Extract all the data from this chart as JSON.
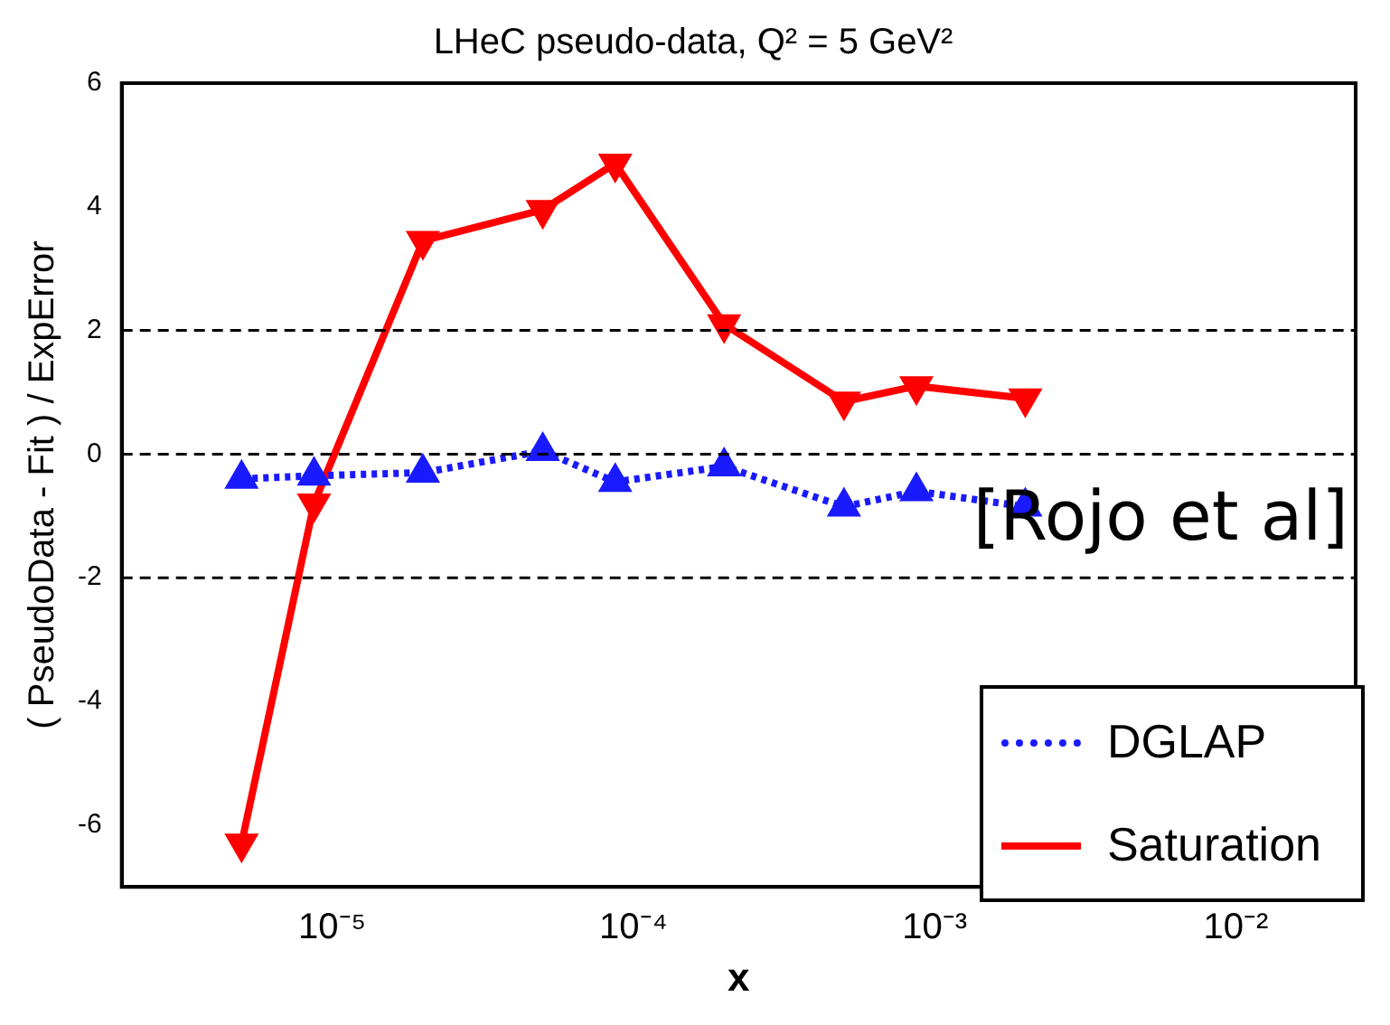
{
  "chart_data": {
    "type": "line",
    "title": "LHeC pseudo-data, Q² = 5 GeV²",
    "xlabel": "x",
    "ylabel": "( PseudoData - Fit ) / ExpError",
    "x": [
      5e-06,
      8.7e-06,
      2e-05,
      5e-05,
      8.7e-05,
      0.0002,
      0.0005,
      0.00087,
      0.002
    ],
    "series": [
      {
        "name": "DGLAP",
        "color": "#1a1aff",
        "values": [
          -0.4,
          -0.35,
          -0.3,
          0.05,
          -0.45,
          -0.2,
          -0.85,
          -0.6,
          -0.85
        ],
        "marker": "triangle",
        "line_style": "dotted"
      },
      {
        "name": "Saturation",
        "color": "#ff0000",
        "values": [
          -6.3,
          -0.8,
          3.45,
          3.95,
          4.7,
          2.1,
          0.85,
          1.1,
          0.9
        ],
        "marker": "triangle-down",
        "line_style": "solid"
      }
    ],
    "log": "x",
    "xlim": [
      2e-06,
      0.025
    ],
    "xticks": [
      {
        "value": 1e-05,
        "label": "10⁻⁵"
      },
      {
        "value": 0.0001,
        "label": "10⁻⁴"
      },
      {
        "value": 0.001,
        "label": "10⁻³"
      },
      {
        "value": 0.01,
        "label": "10⁻²"
      }
    ],
    "ylim": [
      -7,
      6
    ],
    "yticks": [
      -6,
      -4,
      -2,
      0,
      2,
      4,
      6
    ],
    "grid": false,
    "legend": "bottom right",
    "ref_lines": [
      {
        "axis": "y",
        "value": 2,
        "line_style": "dashed",
        "color": "#000000"
      },
      {
        "axis": "y",
        "value": 0,
        "line_style": "dashed",
        "color": "#000000"
      },
      {
        "axis": "y",
        "value": -2,
        "line_style": "dashed",
        "color": "#000000"
      }
    ],
    "annotations": [
      "[Rojo et al]"
    ]
  }
}
